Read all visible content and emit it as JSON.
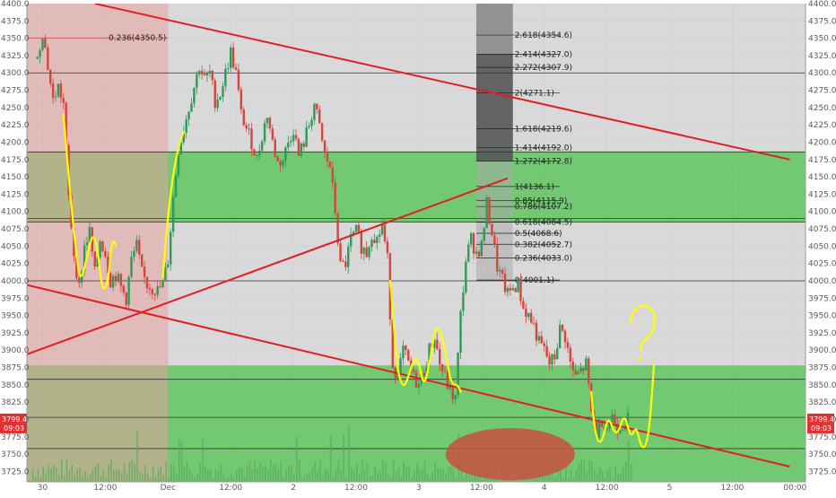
{
  "chart_data": {
    "type": "candlestick",
    "symbol_pair_axis": {
      "ylim": [
        3710,
        4400
      ],
      "y_ticks": [
        3725,
        3750,
        3775,
        3800,
        3825,
        3850,
        3875,
        3900,
        3925,
        3950,
        3975,
        4000,
        4025,
        4050,
        4075,
        4100,
        4125,
        4150,
        4175,
        4200,
        4225,
        4250,
        4275,
        4300,
        4325,
        4350,
        4375,
        4400
      ],
      "y_tick_labels": [
        "3725.0",
        "3750.0",
        "3775.0",
        "3800.0",
        "3825.0",
        "3850.0",
        "3875.0",
        "3900.0",
        "3925.0",
        "3950.0",
        "3975.0",
        "4000.0",
        "4025.0",
        "4050.0",
        "4075.0",
        "4100.0",
        "4125.0",
        "4150.0",
        "4175.0",
        "4200.0",
        "4225.0",
        "4250.0",
        "4275.0",
        "4300.0",
        "4325.0",
        "4350.0",
        "4375.0",
        "4400.0"
      ]
    },
    "x_axis": {
      "range_hours": [
        0,
        144
      ],
      "ticks": [
        {
          "t": 1,
          "label": "30"
        },
        {
          "t": 13,
          "label": "12:00"
        },
        {
          "t": 25,
          "label": "Dec"
        },
        {
          "t": 37,
          "label": "12:00"
        },
        {
          "t": 49,
          "label": "2"
        },
        {
          "t": 61,
          "label": "12:00"
        },
        {
          "t": 73,
          "label": "3"
        },
        {
          "t": 85,
          "label": "12:00"
        },
        {
          "t": 97,
          "label": "4"
        },
        {
          "t": 109,
          "label": "12:00"
        },
        {
          "t": 121,
          "label": "5"
        },
        {
          "t": 133,
          "label": "12:00"
        },
        {
          "t": 145,
          "label": "00:00"
        }
      ]
    },
    "current_price": {
      "value": 3799.4,
      "label": "3799.4",
      "countdown": "09:03"
    },
    "fibonacci": {
      "levels": [
        {
          "price": 4354.6,
          "label": "2.618(4354.6)"
        },
        {
          "price": 4327.0,
          "label": "2.414(4327.0)"
        },
        {
          "price": 4307.9,
          "label": "2.272(4307.9)"
        },
        {
          "price": 4271.1,
          "label": "2(4271.1)"
        },
        {
          "price": 4219.6,
          "label": "1.618(4219.6)"
        },
        {
          "price": 4192.0,
          "label": "1.414(4192.0)"
        },
        {
          "price": 4172.8,
          "label": "1.272(4172.8)"
        },
        {
          "price": 4136.1,
          "label": "1(4136.1)"
        },
        {
          "price": 4115.9,
          "label": "0.85(4115.9)"
        },
        {
          "price": 4107.2,
          "label": "0.786(4107.2)"
        },
        {
          "price": 4084.5,
          "label": "0.618(4084.5)"
        },
        {
          "price": 4068.6,
          "label": "0.5(4068.6)"
        },
        {
          "price": 4052.7,
          "label": "0.382(4052.7)"
        },
        {
          "price": 4033.0,
          "label": "0.236(4033.0)"
        },
        {
          "price": 4001.1,
          "label": "0(4001.1)"
        }
      ],
      "left_retracement": {
        "price": 4350.5,
        "label": "0.236(4350.5)"
      }
    },
    "zones": [
      {
        "name": "upper-green-zone",
        "y_top": 4186,
        "y_bottom": 4085,
        "color": "#4fc34f"
      },
      {
        "name": "lower-green-zone",
        "y_top": 3878,
        "y_bottom": 3710,
        "color": "#4fc34f"
      },
      {
        "name": "left-red-zone",
        "t_start": -2,
        "t_end": 25,
        "y_top": 4400,
        "y_bottom": 3710,
        "color": "#e8a0a0"
      }
    ],
    "horizontal_lines": [
      4300,
      4186,
      4090,
      4085,
      4000,
      3858,
      3803,
      3758
    ],
    "trend_lines": [
      {
        "name": "upper-downtrend",
        "from": [
          11,
          4400
        ],
        "to": [
          144,
          4175
        ],
        "color": "#e02020"
      },
      {
        "name": "rising-trend",
        "from": [
          -2,
          3894
        ],
        "to": [
          90,
          4148
        ],
        "color": "#e02020"
      },
      {
        "name": "lower-downtrend",
        "from": [
          -2,
          3994
        ],
        "to": [
          144,
          3732
        ],
        "color": "#e02020"
      }
    ],
    "candles_from_path": [
      [
        0,
        4320
      ],
      [
        1,
        4360
      ],
      [
        2,
        4310
      ],
      [
        3,
        4260
      ],
      [
        4,
        4280
      ],
      [
        5,
        4255
      ],
      [
        6,
        4120
      ],
      [
        7,
        4040
      ],
      [
        8,
        3990
      ],
      [
        9,
        4050
      ],
      [
        10,
        4070
      ],
      [
        11,
        4010
      ],
      [
        12,
        4060
      ],
      [
        13,
        4040
      ],
      [
        14,
        4000
      ],
      [
        15,
        4010
      ],
      [
        16,
        3990
      ],
      [
        17,
        3975
      ],
      [
        18,
        4030
      ],
      [
        19,
        4050
      ],
      [
        20,
        4010
      ],
      [
        21,
        3995
      ],
      [
        22,
        3990
      ],
      [
        23,
        3985
      ],
      [
        24,
        3995
      ],
      [
        25,
        4030
      ],
      [
        26,
        4120
      ],
      [
        27,
        4190
      ],
      [
        28,
        4220
      ],
      [
        29,
        4250
      ],
      [
        30,
        4280
      ],
      [
        31,
        4310
      ],
      [
        32,
        4290
      ],
      [
        33,
        4300
      ],
      [
        34,
        4260
      ],
      [
        35,
        4270
      ],
      [
        36,
        4300
      ],
      [
        37,
        4330
      ],
      [
        38,
        4300
      ],
      [
        39,
        4240
      ],
      [
        40,
        4220
      ],
      [
        41,
        4200
      ],
      [
        42,
        4175
      ],
      [
        43,
        4210
      ],
      [
        44,
        4240
      ],
      [
        45,
        4200
      ],
      [
        46,
        4170
      ],
      [
        47,
        4175
      ],
      [
        48,
        4200
      ],
      [
        49,
        4220
      ],
      [
        50,
        4180
      ],
      [
        51,
        4200
      ],
      [
        52,
        4225
      ],
      [
        53,
        4255
      ],
      [
        54,
        4220
      ],
      [
        55,
        4180
      ],
      [
        56,
        4165
      ],
      [
        57,
        4100
      ],
      [
        58,
        4020
      ],
      [
        59,
        4025
      ],
      [
        60,
        4060
      ],
      [
        61,
        4070
      ],
      [
        62,
        4050
      ],
      [
        63,
        4040
      ],
      [
        64,
        4070
      ],
      [
        65,
        4060
      ],
      [
        66,
        4080
      ],
      [
        67,
        4030
      ],
      [
        68,
        3880
      ],
      [
        69,
        3860
      ],
      [
        70,
        3900
      ],
      [
        71,
        3880
      ],
      [
        72,
        3860
      ],
      [
        73,
        3850
      ],
      [
        74,
        3870
      ],
      [
        75,
        3900
      ],
      [
        76,
        3920
      ],
      [
        77,
        3880
      ],
      [
        78,
        3860
      ],
      [
        79,
        3840
      ],
      [
        80,
        3830
      ],
      [
        81,
        3950
      ],
      [
        82,
        4030
      ],
      [
        83,
        4060
      ],
      [
        84,
        4040
      ],
      [
        85,
        4050
      ],
      [
        86,
        4110
      ],
      [
        87,
        4070
      ],
      [
        88,
        4020
      ],
      [
        89,
        4000
      ],
      [
        90,
        3980
      ],
      [
        91,
        3990
      ],
      [
        92,
        3995
      ],
      [
        93,
        3960
      ],
      [
        94,
        3950
      ],
      [
        95,
        3935
      ],
      [
        96,
        3910
      ],
      [
        97,
        3900
      ],
      [
        98,
        3880
      ],
      [
        99,
        3890
      ],
      [
        100,
        3930
      ],
      [
        101,
        3920
      ],
      [
        102,
        3880
      ],
      [
        103,
        3860
      ],
      [
        104,
        3870
      ],
      [
        105,
        3880
      ],
      [
        106,
        3810
      ],
      [
        107,
        3780
      ],
      [
        108,
        3800
      ],
      [
        109,
        3790
      ],
      [
        110,
        3805
      ],
      [
        111,
        3790
      ],
      [
        112,
        3795
      ],
      [
        113,
        3800
      ]
    ],
    "annotations": [
      {
        "type": "drawn-question-mark",
        "color": "#f0f000"
      },
      {
        "type": "red-ellipse",
        "color": "#c85050"
      }
    ]
  }
}
